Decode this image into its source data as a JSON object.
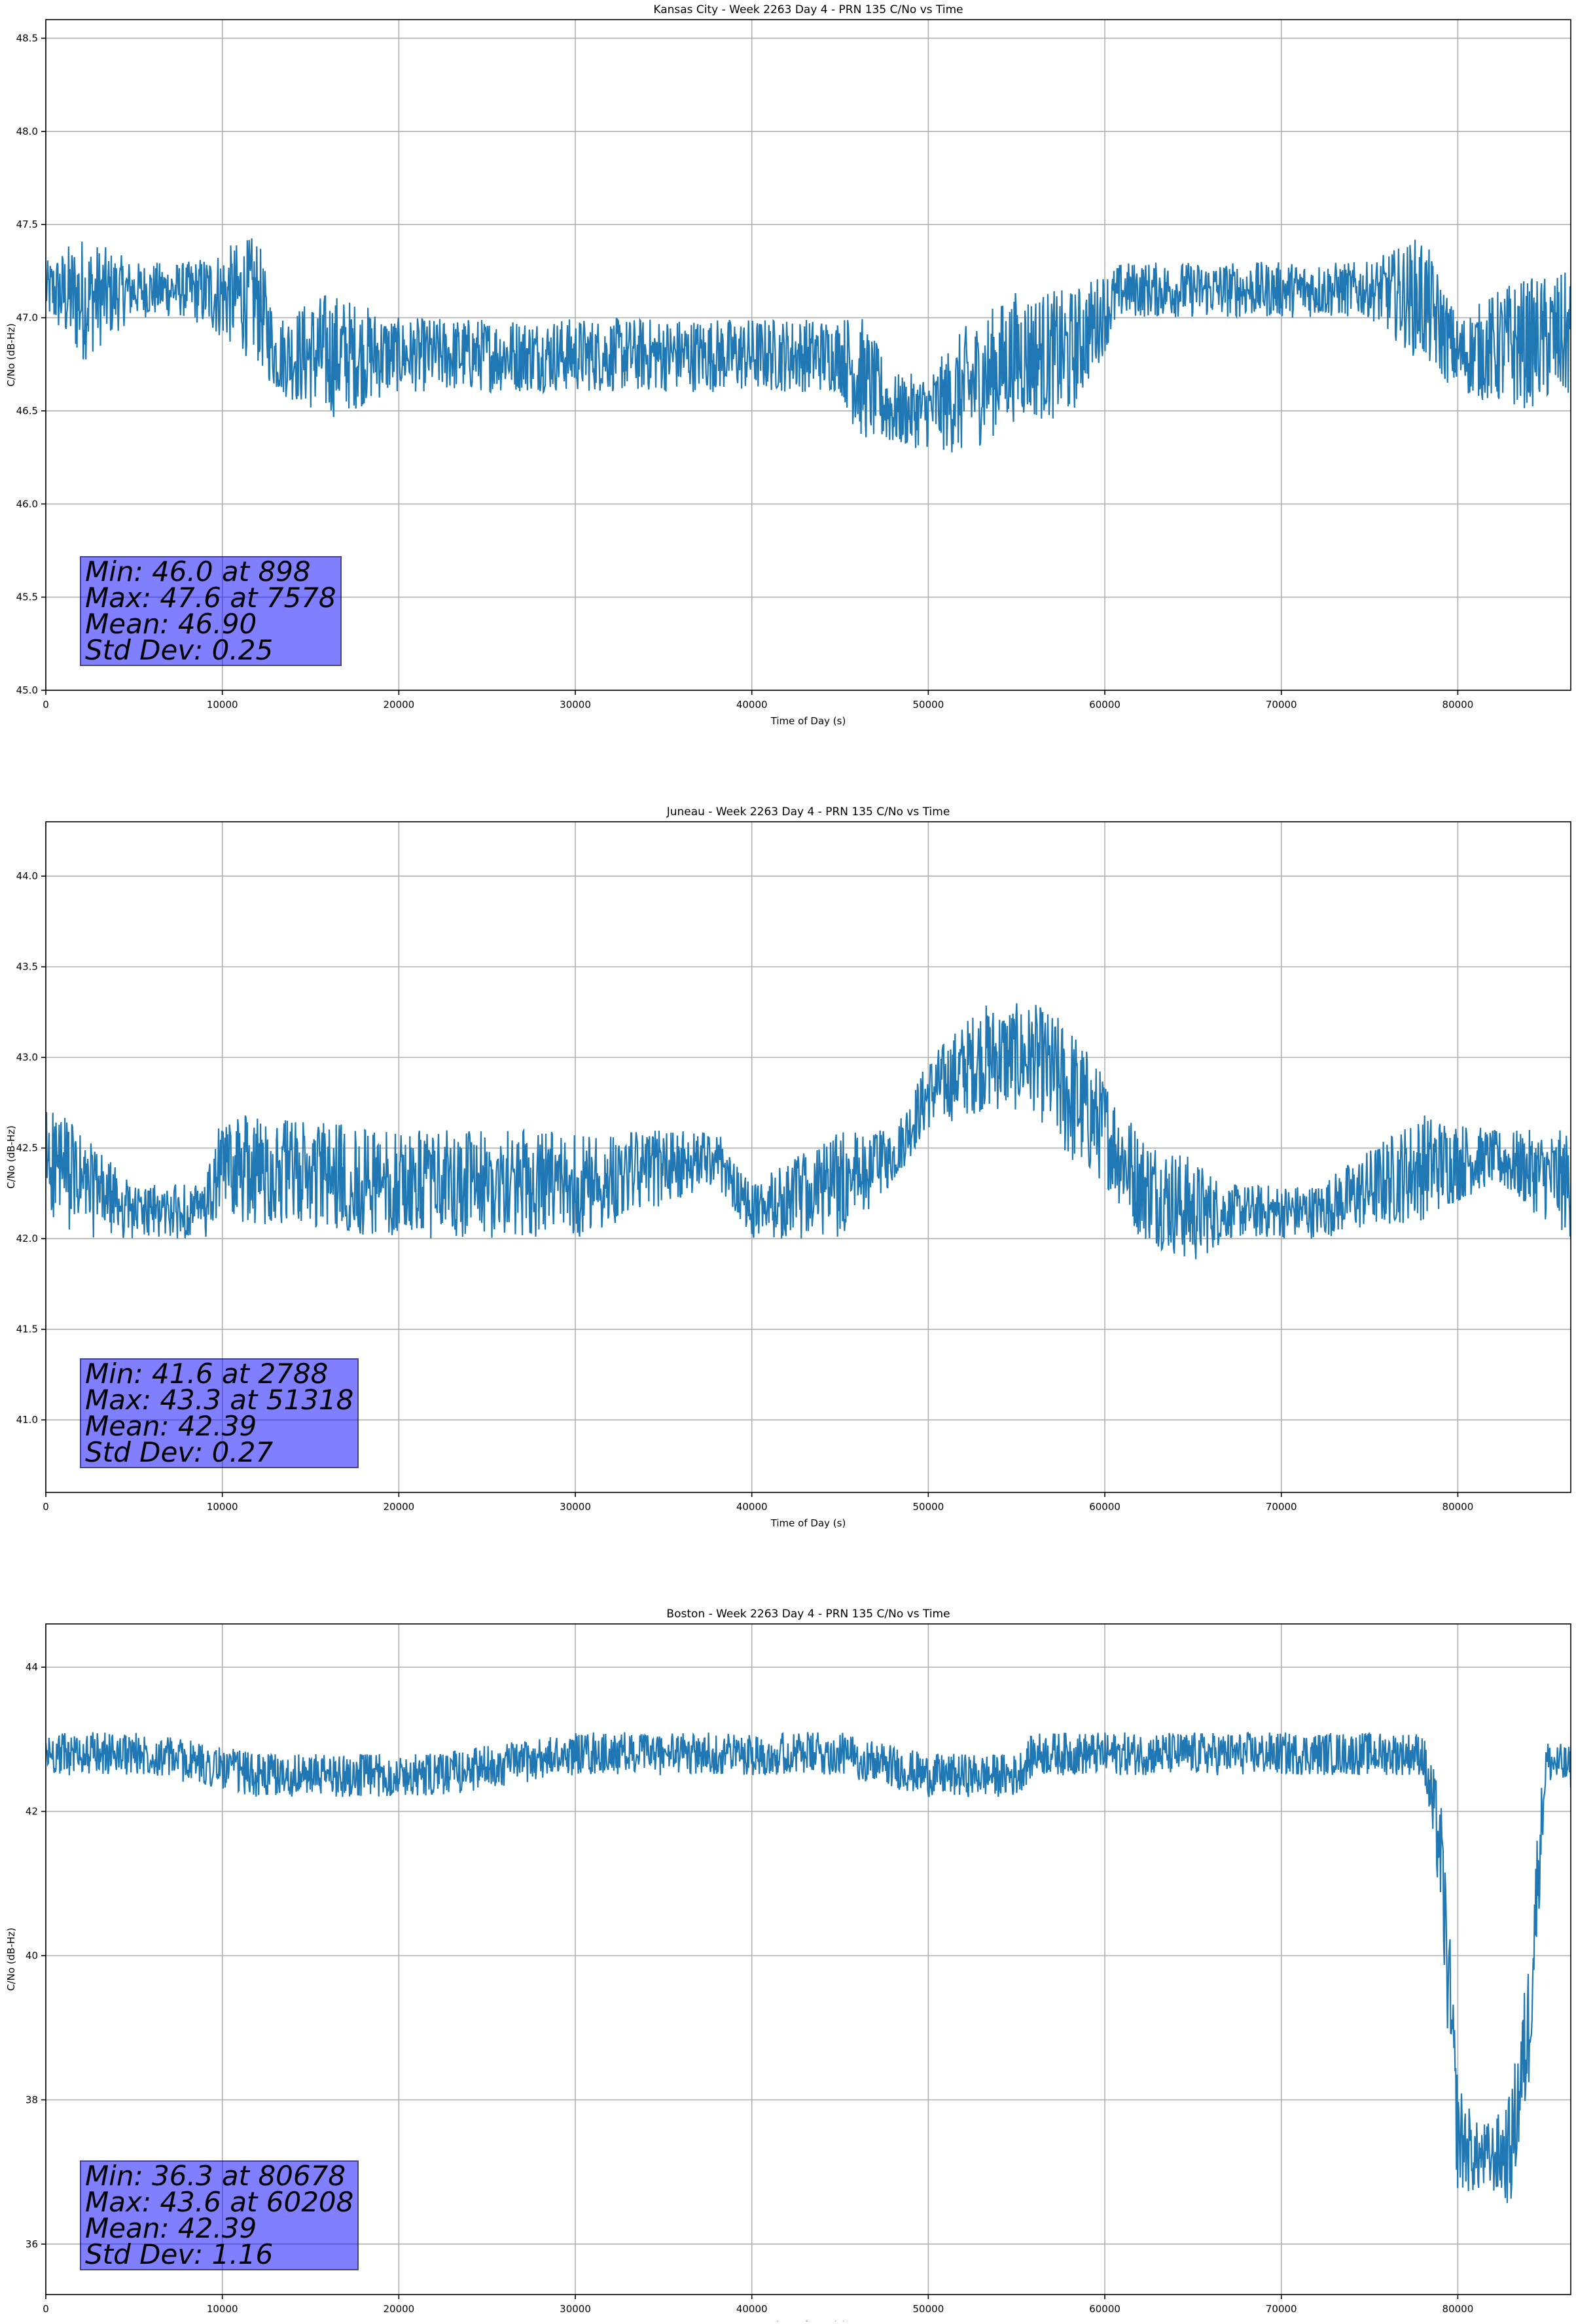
{
  "chart_data": [
    {
      "type": "line",
      "title": "Kansas City - Week 2263 Day 4 - PRN 135 C/No vs Time",
      "xlabel": "Time of Day (s)",
      "ylabel": "C/No (dB-Hz)",
      "xlim": [
        0,
        86400
      ],
      "ylim": [
        45.0,
        48.6
      ],
      "xticks": [
        0,
        10000,
        20000,
        30000,
        40000,
        50000,
        60000,
        70000,
        80000
      ],
      "yticks": [
        "45.0",
        "45.5",
        "46.0",
        "46.5",
        "47.0",
        "47.5",
        "48.0",
        "48.5"
      ],
      "grid": true,
      "color": "#1f77b4",
      "series": [
        {
          "x": [
            0,
            2000,
            5000,
            8000,
            12000,
            13000,
            16000,
            20000,
            25000,
            30000,
            35000,
            40000,
            45000,
            46000,
            48000,
            50000,
            52000,
            55000,
            58000,
            61000,
            65000,
            70000,
            75000,
            78000,
            80000,
            83000,
            86400
          ],
          "y": [
            47.15,
            47.1,
            47.15,
            47.15,
            47.1,
            46.8,
            46.8,
            46.8,
            46.8,
            46.8,
            46.8,
            46.8,
            46.8,
            46.7,
            46.5,
            46.5,
            46.6,
            46.8,
            46.8,
            47.15,
            47.15,
            47.15,
            47.15,
            47.1,
            46.8,
            46.85,
            46.9
          ],
          "spread": [
            0.15,
            0.35,
            0.15,
            0.15,
            0.35,
            0.2,
            0.35,
            0.2,
            0.2,
            0.2,
            0.2,
            0.2,
            0.2,
            0.35,
            0.2,
            0.2,
            0.35,
            0.35,
            0.35,
            0.15,
            0.15,
            0.15,
            0.15,
            0.35,
            0.2,
            0.35,
            0.35
          ]
        }
      ],
      "stats": {
        "min": "Min: 46.0 at 898",
        "max": "Max: 47.6 at 7578",
        "mean": "Mean: 46.90",
        "std": "Std Dev: 0.25"
      }
    },
    {
      "type": "line",
      "title": "Juneau - Week 2263 Day 4 - PRN 135 C/No vs Time",
      "xlabel": "Time of Day (s)",
      "ylabel": "C/No (dB-Hz)",
      "xlim": [
        0,
        86400
      ],
      "ylim": [
        40.6,
        44.3
      ],
      "xticks": [
        0,
        10000,
        20000,
        30000,
        40000,
        50000,
        60000,
        70000,
        80000
      ],
      "yticks": [
        "41.0",
        "41.5",
        "42.0",
        "42.5",
        "43.0",
        "43.5",
        "44.0"
      ],
      "grid": true,
      "color": "#1f77b4",
      "series": [
        {
          "x": [
            0,
            2000,
            5000,
            9000,
            10000,
            20000,
            30000,
            38000,
            40000,
            45000,
            48000,
            50000,
            53000,
            56000,
            58000,
            60000,
            62000,
            65000,
            67000,
            72000,
            78000,
            82000,
            86400
          ],
          "y": [
            42.45,
            42.3,
            42.15,
            42.15,
            42.4,
            42.3,
            42.3,
            42.45,
            42.15,
            42.3,
            42.45,
            42.8,
            43.0,
            43.0,
            42.8,
            42.6,
            42.3,
            42.15,
            42.15,
            42.15,
            42.4,
            42.45,
            42.3
          ],
          "spread": [
            0.3,
            0.3,
            0.15,
            0.15,
            0.3,
            0.3,
            0.3,
            0.15,
            0.15,
            0.3,
            0.15,
            0.2,
            0.3,
            0.3,
            0.4,
            0.3,
            0.3,
            0.3,
            0.15,
            0.15,
            0.3,
            0.15,
            0.3
          ]
        }
      ],
      "stats": {
        "min": "Min: 41.6 at 2788",
        "max": "Max: 43.3 at 51318",
        "mean": "Mean: 42.39",
        "std": "Std Dev: 0.27"
      }
    },
    {
      "type": "line",
      "title": "Boston - Week 2263 Day 4 - PRN 135 C/No vs Time",
      "xlabel": "Time of Day (s)",
      "ylabel": "C/No (dB-Hz)",
      "xlim": [
        0,
        86400
      ],
      "ylim": [
        35.3,
        44.6
      ],
      "xticks": [
        0,
        10000,
        20000,
        30000,
        40000,
        50000,
        60000,
        70000,
        80000
      ],
      "yticks": [
        "36",
        "38",
        "40",
        "42",
        "44"
      ],
      "grid": true,
      "color": "#1f77b4",
      "series": [
        {
          "x": [
            0,
            6000,
            12000,
            18000,
            22000,
            30000,
            40000,
            45000,
            50000,
            55000,
            56000,
            60000,
            70000,
            78000,
            79000,
            79500,
            80000,
            81000,
            82000,
            83000,
            84000,
            84500,
            85000,
            86400
          ],
          "y": [
            42.8,
            42.8,
            42.5,
            42.5,
            42.5,
            42.8,
            42.8,
            42.8,
            42.5,
            42.5,
            42.8,
            42.8,
            42.8,
            42.8,
            41.5,
            39.5,
            37.5,
            37.2,
            37.2,
            37.3,
            39.0,
            41.0,
            42.7,
            42.6
          ],
          "spread": [
            0.3,
            0.3,
            0.3,
            0.3,
            0.3,
            0.3,
            0.3,
            0.3,
            0.3,
            0.3,
            0.3,
            0.3,
            0.3,
            0.3,
            0.8,
            1.0,
            0.8,
            0.5,
            0.5,
            0.8,
            1.0,
            0.8,
            0.3,
            0.3
          ]
        }
      ],
      "stats": {
        "min": "Min: 36.3 at 80678",
        "max": "Max: 43.6 at 60208",
        "mean": "Mean: 42.39",
        "std": "Std Dev: 1.16"
      }
    }
  ]
}
